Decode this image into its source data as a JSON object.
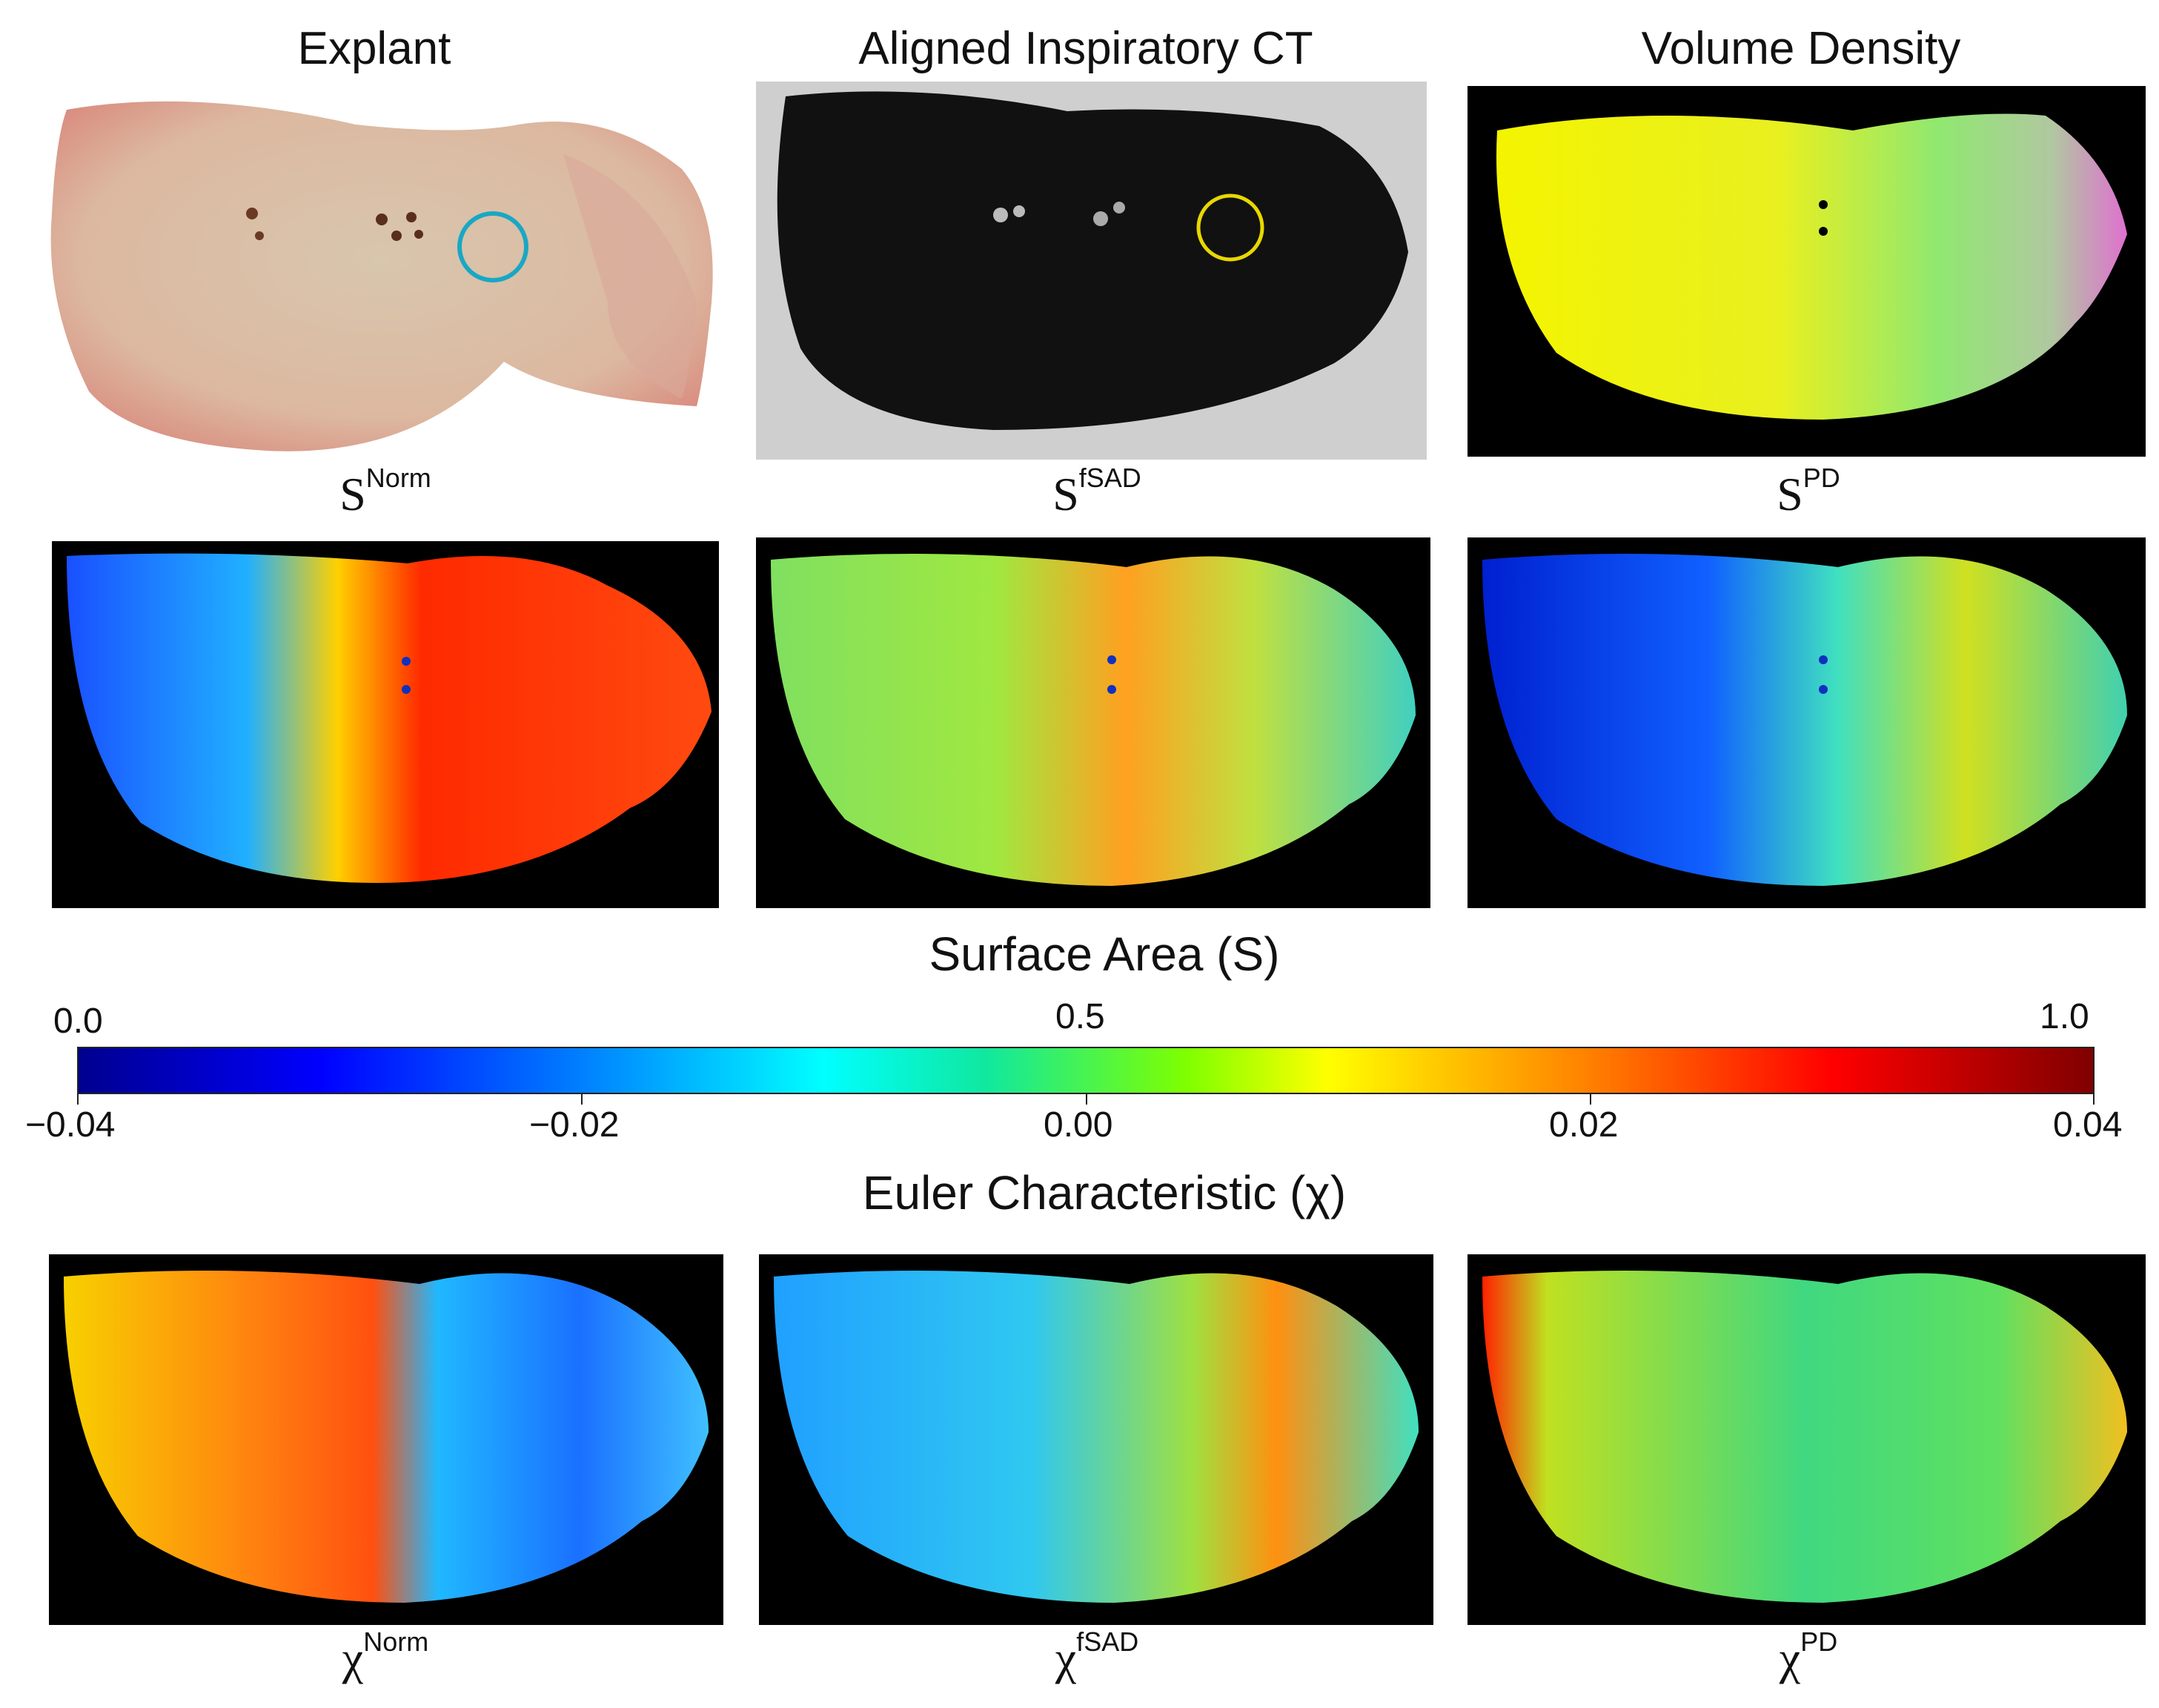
{
  "columns": {
    "col1_title": "Explant",
    "col2_title": "Aligned Inspiratory CT",
    "col3_title": "Volume Density"
  },
  "row1_labels": [
    {
      "base": "S",
      "sup": "Norm"
    },
    {
      "base": "S",
      "sup": "fSAD"
    },
    {
      "base": "S",
      "sup": "PD"
    }
  ],
  "row3_labels": [
    {
      "base": "χ",
      "sup": "Norm"
    },
    {
      "base": "χ",
      "sup": "fSAD"
    },
    {
      "base": "χ",
      "sup": "PD"
    }
  ],
  "surface_scale": {
    "title": "Surface Area (S)",
    "ticks": [
      "0.0",
      "0.5",
      "1.0"
    ]
  },
  "euler_scale": {
    "title": "Euler Characteristic (χ)",
    "ticks": [
      "−0.04",
      "−0.02",
      "0.00",
      "0.02",
      "0.04"
    ]
  },
  "colors": {
    "explant_circle": "#1aa7c4",
    "ct_circle": "#e8d800"
  }
}
